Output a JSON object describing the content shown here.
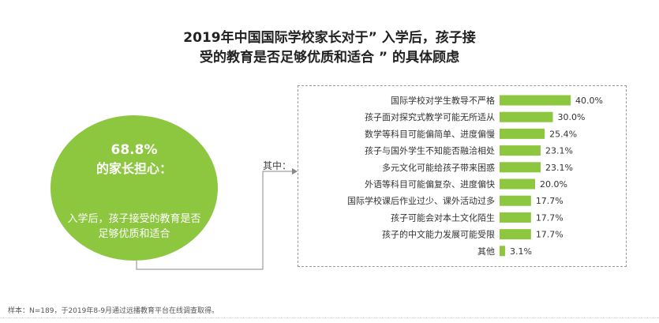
{
  "title": {
    "line1": "2019年中国国际学校家长对于” 入学后，孩子接",
    "line2": "受的教育是否足够优质和适合 ” 的具体顾虑"
  },
  "summary": {
    "percent": "68.8%",
    "headline": "的家长担心：",
    "description": "入学后，孩子接受的教育是否足够优质和适合"
  },
  "connector_label": "其中：",
  "footnote": "样本：N=189，于2019年8-9月通过远播教育平台在线调查取得。",
  "colors": {
    "accent": "#8dc63f"
  },
  "chart_data": {
    "type": "bar",
    "orientation": "horizontal",
    "categories": [
      "国际学校对学生教导不严格",
      "孩子面对探究式教学可能无所适从",
      "数学等科目可能偏简单、进度偏慢",
      "孩子与国外学生不知能否融洽相处",
      "多元文化可能给孩子带来困惑",
      "外语等科目可能偏复杂、进度偏快",
      "国际学校课后作业过少、课外活动过多",
      "孩子可能会对本土文化陌生",
      "孩子的中文能力发展可能受限",
      "其他"
    ],
    "values": [
      40.0,
      30.0,
      25.4,
      23.1,
      23.1,
      20.0,
      17.7,
      17.7,
      17.7,
      3.1
    ],
    "value_labels": [
      "40.0%",
      "30.0%",
      "25.4%",
      "23.1%",
      "23.1%",
      "20.0%",
      "17.7%",
      "17.7%",
      "17.7%",
      "3.1%"
    ],
    "unit": "%",
    "color": "#8dc63f",
    "xlim": [
      0,
      40
    ],
    "grid": false,
    "legend": "none"
  }
}
